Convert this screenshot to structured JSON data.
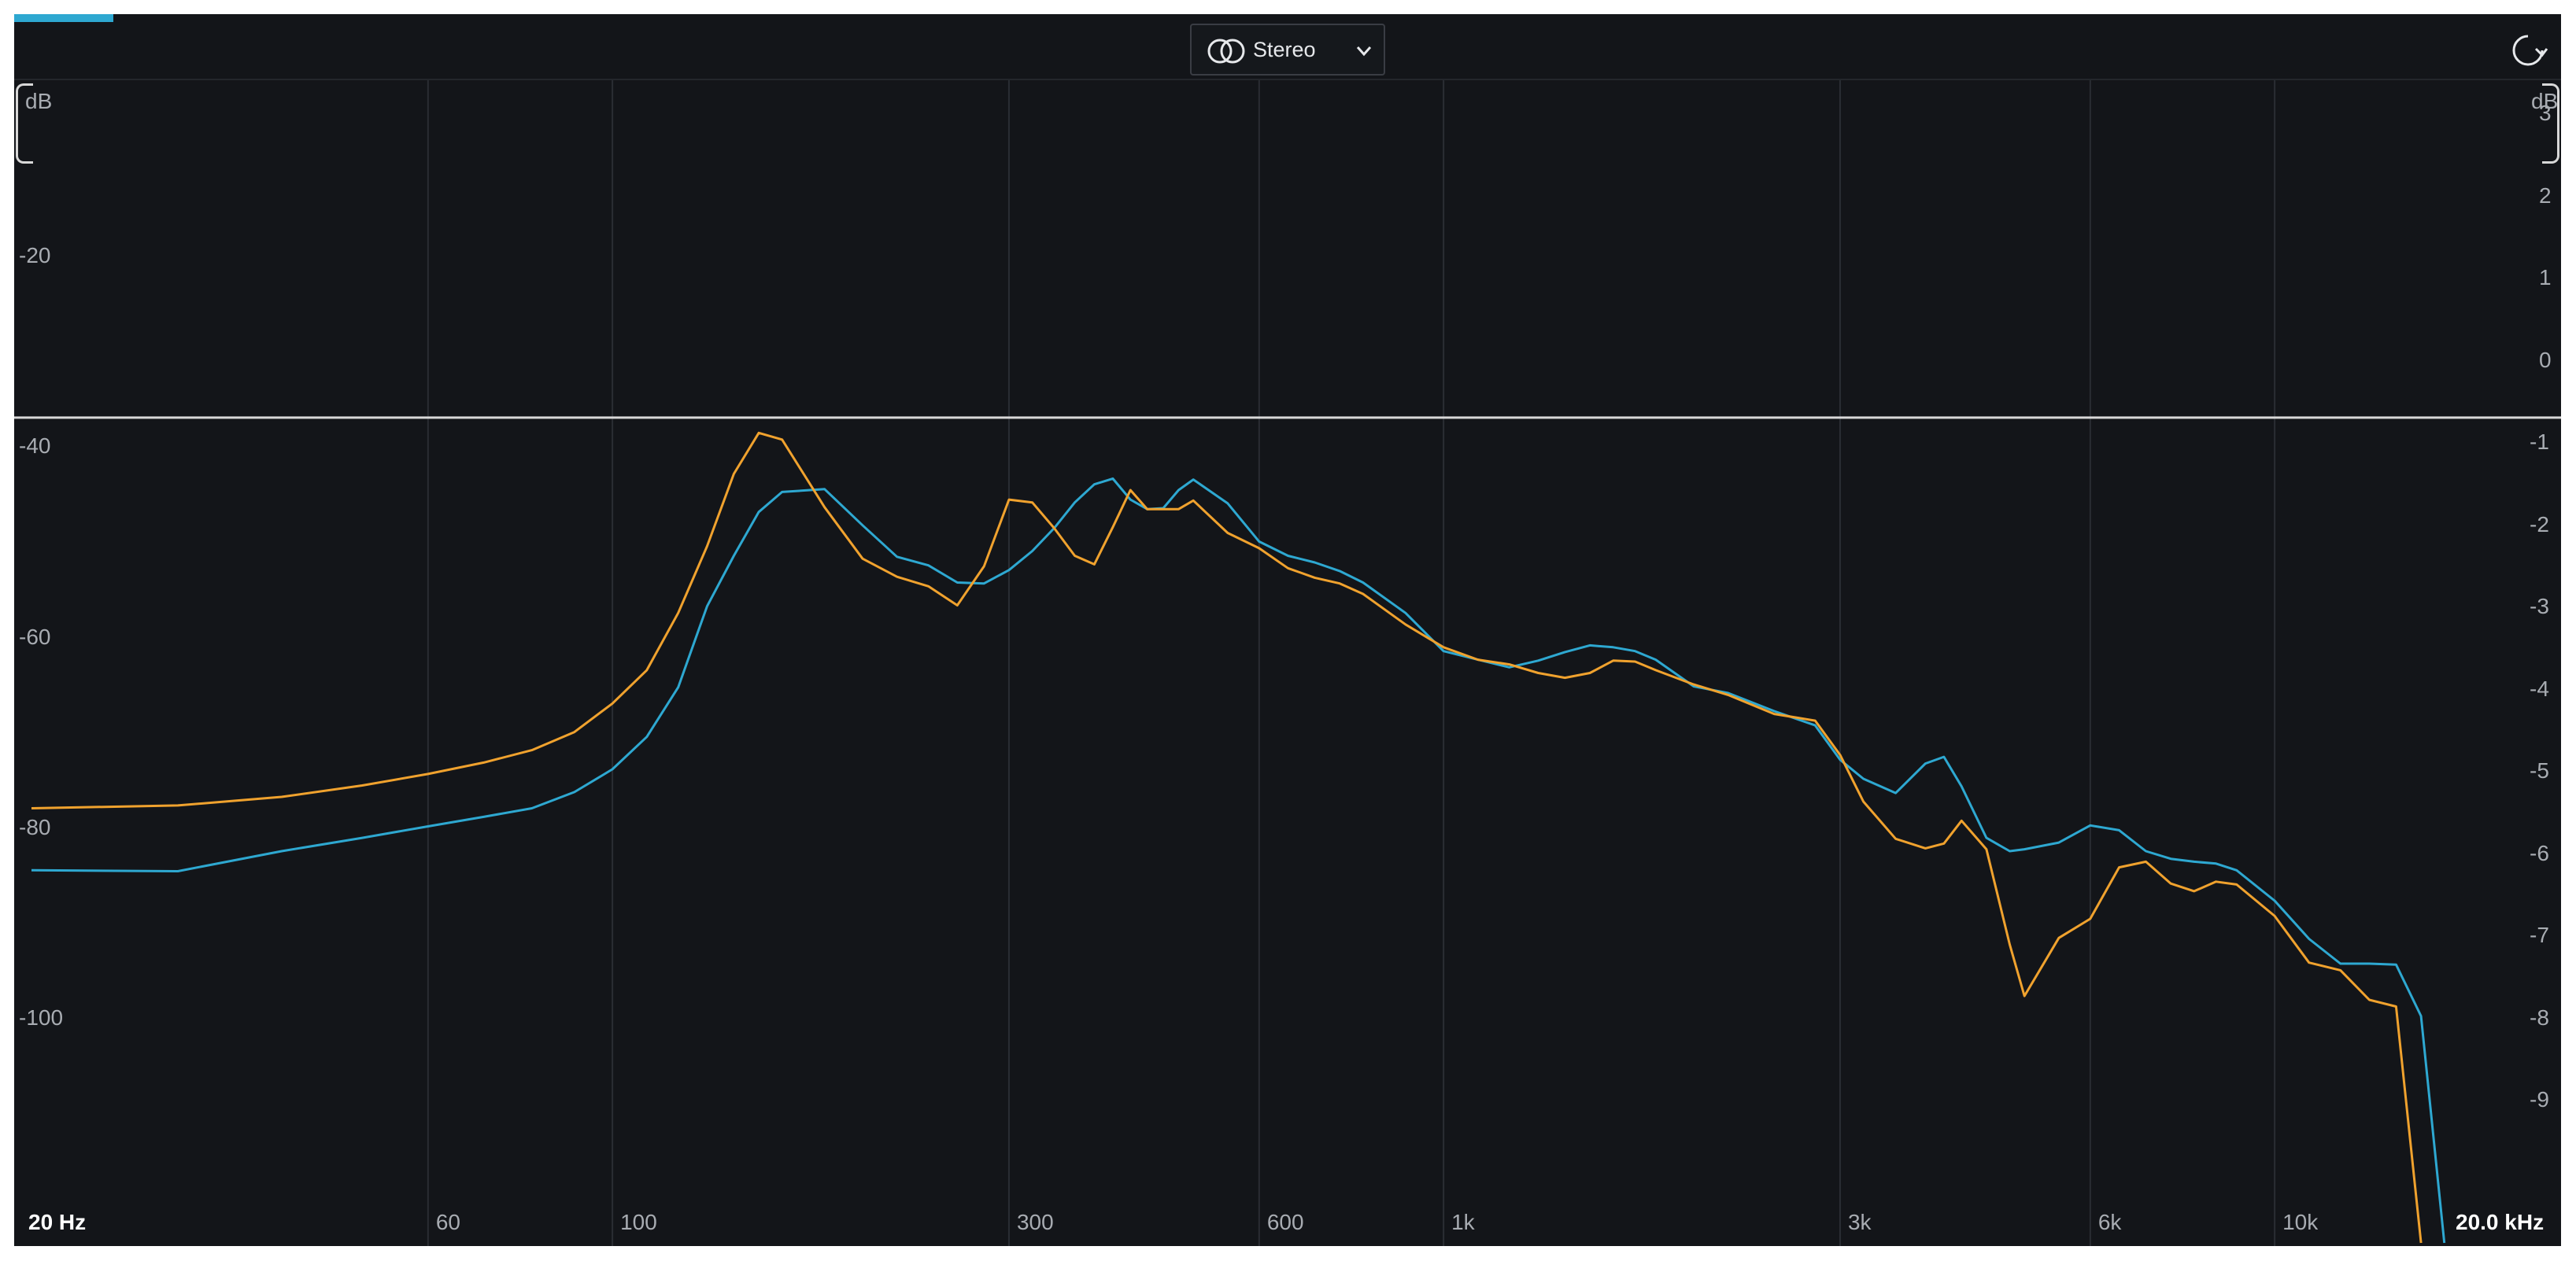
{
  "toolbar": {
    "mode_label": "Stereo",
    "mode_icon": "stereo-icon",
    "reset_icon": "reset-icon",
    "accent_color": "#2ea8d1"
  },
  "axes": {
    "db_unit": "dB",
    "db_ticks_left": [
      "-20",
      "-40",
      "-60",
      "-80",
      "-100"
    ],
    "db_ticks_right": [
      "3",
      "2",
      "1",
      "0",
      "-1",
      "-2",
      "-3",
      "-4",
      "-5",
      "-6",
      "-7",
      "-8",
      "-9"
    ],
    "freq_ticks": [
      "20 Hz",
      "60",
      "100",
      "300",
      "600",
      "1k",
      "3k",
      "6k",
      "10k",
      "20.0 kHz"
    ]
  },
  "chart_data": {
    "type": "line",
    "x_scale": "log",
    "xlim": [
      20,
      20000
    ],
    "ylim": [
      -125,
      3
    ],
    "grid": true,
    "series": [
      {
        "color": "#2ea8d1",
        "x": [
          20,
          30,
          40,
          50,
          60,
          70,
          80,
          90,
          100,
          110,
          120,
          130,
          140,
          150,
          160,
          180,
          200,
          220,
          240,
          260,
          280,
          300,
          320,
          340,
          360,
          380,
          400,
          420,
          440,
          460,
          480,
          500,
          550,
          600,
          650,
          700,
          750,
          800,
          900,
          1000,
          1100,
          1200,
          1300,
          1400,
          1500,
          1600,
          1700,
          1800,
          2000,
          2200,
          2500,
          2800,
          3000,
          3200,
          3500,
          3800,
          4000,
          4200,
          4500,
          4800,
          5000,
          5500,
          6000,
          6500,
          7000,
          7500,
          8000,
          8500,
          9000,
          10000,
          11000,
          12000,
          13000,
          14000,
          15000,
          16000
        ],
        "y": [
          -84.5,
          -84.6,
          -82.5,
          -81.1,
          -79.9,
          -78.9,
          -78,
          -76.3,
          -73.9,
          -70.5,
          -65.3,
          -56.8,
          -51.5,
          -46.9,
          -44.8,
          -44.5,
          -48.3,
          -51.6,
          -52.5,
          -54.3,
          -54.4,
          -53,
          -51,
          -48.6,
          -45.9,
          -44,
          -43.4,
          -45.6,
          -46.6,
          -46.5,
          -44.6,
          -43.5,
          -46,
          -50,
          -51.5,
          -52.2,
          -53.1,
          -54.3,
          -57.5,
          -61.5,
          -62.4,
          -63.2,
          -62.5,
          -61.6,
          -60.9,
          -61.1,
          -61.5,
          -62.4,
          -65.2,
          -65.9,
          -67.8,
          -69.3,
          -72.9,
          -74.9,
          -76.4,
          -73.3,
          -72.6,
          -75.7,
          -81.1,
          -82.5,
          -82.3,
          -81.6,
          -79.8,
          -80.3,
          -82.5,
          -83.3,
          -83.6,
          -83.8,
          -84.5,
          -87.7,
          -91.7,
          -94.3,
          -94.3,
          -94.4,
          -99.8,
          -125
        ]
      },
      {
        "color": "#f0a22e",
        "x": [
          20,
          30,
          40,
          50,
          60,
          70,
          80,
          90,
          100,
          110,
          120,
          130,
          140,
          150,
          160,
          180,
          200,
          220,
          240,
          260,
          280,
          300,
          320,
          340,
          360,
          380,
          400,
          420,
          440,
          460,
          480,
          500,
          550,
          600,
          650,
          700,
          750,
          800,
          900,
          1000,
          1100,
          1200,
          1300,
          1400,
          1500,
          1600,
          1700,
          1800,
          2000,
          2200,
          2500,
          2800,
          3000,
          3200,
          3500,
          3800,
          4000,
          4200,
          4500,
          4800,
          5000,
          5500,
          6000,
          6500,
          7000,
          7500,
          8000,
          8500,
          9000,
          10000,
          11000,
          12000,
          13000,
          14000,
          15000
        ],
        "y": [
          -78,
          -77.7,
          -76.8,
          -75.6,
          -74.4,
          -73.2,
          -71.9,
          -70,
          -67,
          -63.5,
          -57.5,
          -50.5,
          -42.9,
          -38.6,
          -39.3,
          -46.4,
          -51.8,
          -53.7,
          -54.7,
          -56.7,
          -52.6,
          -45.6,
          -45.9,
          -48.6,
          -51.5,
          -52.4,
          -48.5,
          -44.6,
          -46.6,
          -46.6,
          -46.6,
          -45.7,
          -49.1,
          -50.7,
          -52.8,
          -53.8,
          -54.4,
          -55.5,
          -58.7,
          -61.1,
          -62.4,
          -62.9,
          -63.8,
          -64.3,
          -63.8,
          -62.5,
          -62.6,
          -63.5,
          -65,
          -66.1,
          -68.1,
          -68.8,
          -72.4,
          -77.3,
          -81.2,
          -82.2,
          -81.7,
          -79.3,
          -82.3,
          -92.3,
          -97.7,
          -91.6,
          -89.6,
          -84.2,
          -83.6,
          -85.9,
          -86.7,
          -85.7,
          -86,
          -89.3,
          -94.2,
          -95,
          -98.1,
          -98.8,
          -125
        ]
      }
    ]
  }
}
